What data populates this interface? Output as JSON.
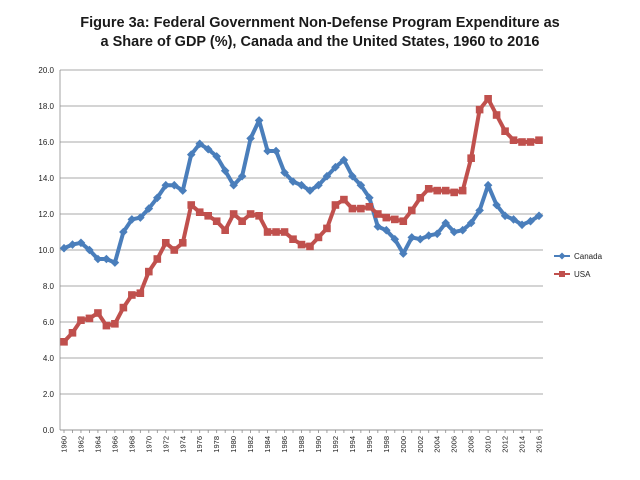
{
  "chart_data": {
    "type": "line",
    "title_lines": [
      "Figure 3a: Federal Government Non-Defense Program Expenditure as",
      "a Share of GDP (%), Canada and the United States, 1960 to 2016"
    ],
    "xlabel": "",
    "ylabel": "",
    "x": [
      1960,
      1961,
      1962,
      1963,
      1964,
      1965,
      1966,
      1967,
      1968,
      1969,
      1970,
      1971,
      1972,
      1973,
      1974,
      1975,
      1976,
      1977,
      1978,
      1979,
      1980,
      1981,
      1982,
      1983,
      1984,
      1985,
      1986,
      1987,
      1988,
      1989,
      1990,
      1991,
      1992,
      1993,
      1994,
      1995,
      1996,
      1997,
      1998,
      1999,
      2000,
      2001,
      2002,
      2003,
      2004,
      2005,
      2006,
      2007,
      2008,
      2009,
      2010,
      2011,
      2012,
      2013,
      2014,
      2015,
      2016
    ],
    "x_tick_labels": [
      "1960",
      "1962",
      "1964",
      "1966",
      "1968",
      "1970",
      "1972",
      "1974",
      "1976",
      "1978",
      "1980",
      "1982",
      "1984",
      "1986",
      "1988",
      "1990",
      "1992",
      "1994",
      "1996",
      "1998",
      "2000",
      "2002",
      "2004",
      "2006",
      "2008",
      "2010",
      "2012",
      "2014",
      "2016"
    ],
    "ylim": [
      0,
      20
    ],
    "y_ticks": [
      "0.0",
      "2.0",
      "4.0",
      "6.0",
      "8.0",
      "10.0",
      "12.0",
      "14.0",
      "16.0",
      "18.0",
      "20.0"
    ],
    "grid": "horizontal",
    "legend_position": "right",
    "series": [
      {
        "name": "Canada",
        "color": "#4a7ebb",
        "marker": "diamond",
        "values": [
          10.1,
          10.3,
          10.4,
          10.0,
          9.5,
          9.5,
          9.3,
          11.0,
          11.7,
          11.8,
          12.3,
          12.9,
          13.6,
          13.6,
          13.3,
          15.3,
          15.9,
          15.6,
          15.2,
          14.4,
          13.6,
          14.1,
          16.2,
          17.2,
          15.5,
          15.5,
          14.3,
          13.8,
          13.6,
          13.3,
          13.6,
          14.1,
          14.6,
          15.0,
          14.1,
          13.6,
          12.9,
          11.3,
          11.1,
          10.6,
          9.8,
          10.7,
          10.6,
          10.8,
          10.9,
          11.5,
          11.0,
          11.1,
          11.5,
          12.2,
          13.6,
          12.5,
          11.9,
          11.7,
          11.4,
          11.6,
          11.9
        ]
      },
      {
        "name": "USA",
        "color": "#c0504d",
        "marker": "square",
        "values": [
          4.9,
          5.4,
          6.1,
          6.2,
          6.5,
          5.8,
          5.9,
          6.8,
          7.5,
          7.6,
          8.8,
          9.5,
          10.4,
          10.0,
          10.4,
          12.5,
          12.1,
          11.9,
          11.6,
          11.1,
          12.0,
          11.6,
          12.0,
          11.9,
          11.0,
          11.0,
          11.0,
          10.6,
          10.3,
          10.2,
          10.7,
          11.2,
          12.5,
          12.8,
          12.3,
          12.3,
          12.4,
          12.0,
          11.8,
          11.7,
          11.6,
          12.2,
          12.9,
          13.4,
          13.3,
          13.3,
          13.2,
          13.3,
          15.1,
          17.8,
          18.4,
          17.5,
          16.6,
          16.1,
          16.0,
          16.0,
          16.1
        ]
      }
    ]
  }
}
